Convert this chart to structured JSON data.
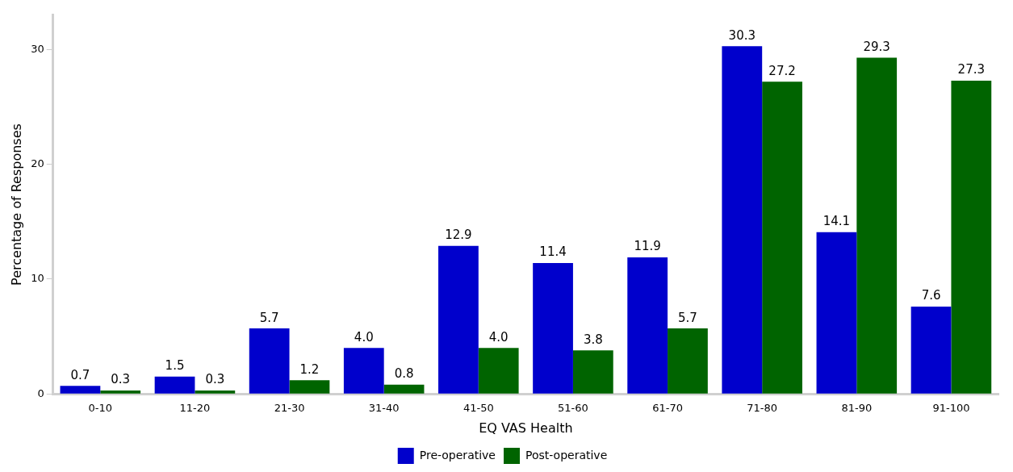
{
  "chart_data": {
    "type": "bar",
    "xlabel": "EQ VAS Health",
    "ylabel": "Percentage of Responses",
    "categories": [
      "0-10",
      "11-20",
      "21-30",
      "31-40",
      "41-50",
      "51-60",
      "61-70",
      "71-80",
      "81-90",
      "91-100"
    ],
    "series": [
      {
        "name": "Pre-operative",
        "color": "#0000cc",
        "values": [
          0.7,
          1.5,
          5.7,
          4.0,
          12.9,
          11.4,
          11.9,
          30.3,
          14.1,
          7.6
        ],
        "value_labels": [
          "0.7",
          "1.5",
          "5.7",
          "4.0",
          "12.9",
          "11.4",
          "11.9",
          "30.3",
          "14.1",
          "7.6"
        ]
      },
      {
        "name": "Post-operative",
        "color": "#006400",
        "values": [
          0.3,
          0.3,
          1.2,
          0.8,
          4.0,
          3.8,
          5.7,
          27.2,
          29.3,
          27.3
        ],
        "value_labels": [
          "0.3",
          "0.3",
          "1.2",
          "0.8",
          "4.0",
          "3.8",
          "5.7",
          "27.2",
          "29.3",
          "27.3"
        ]
      }
    ],
    "ylim": [
      0,
      33
    ],
    "yticks": [
      0,
      10,
      20,
      30
    ],
    "grid": false,
    "legend": "bottom"
  }
}
